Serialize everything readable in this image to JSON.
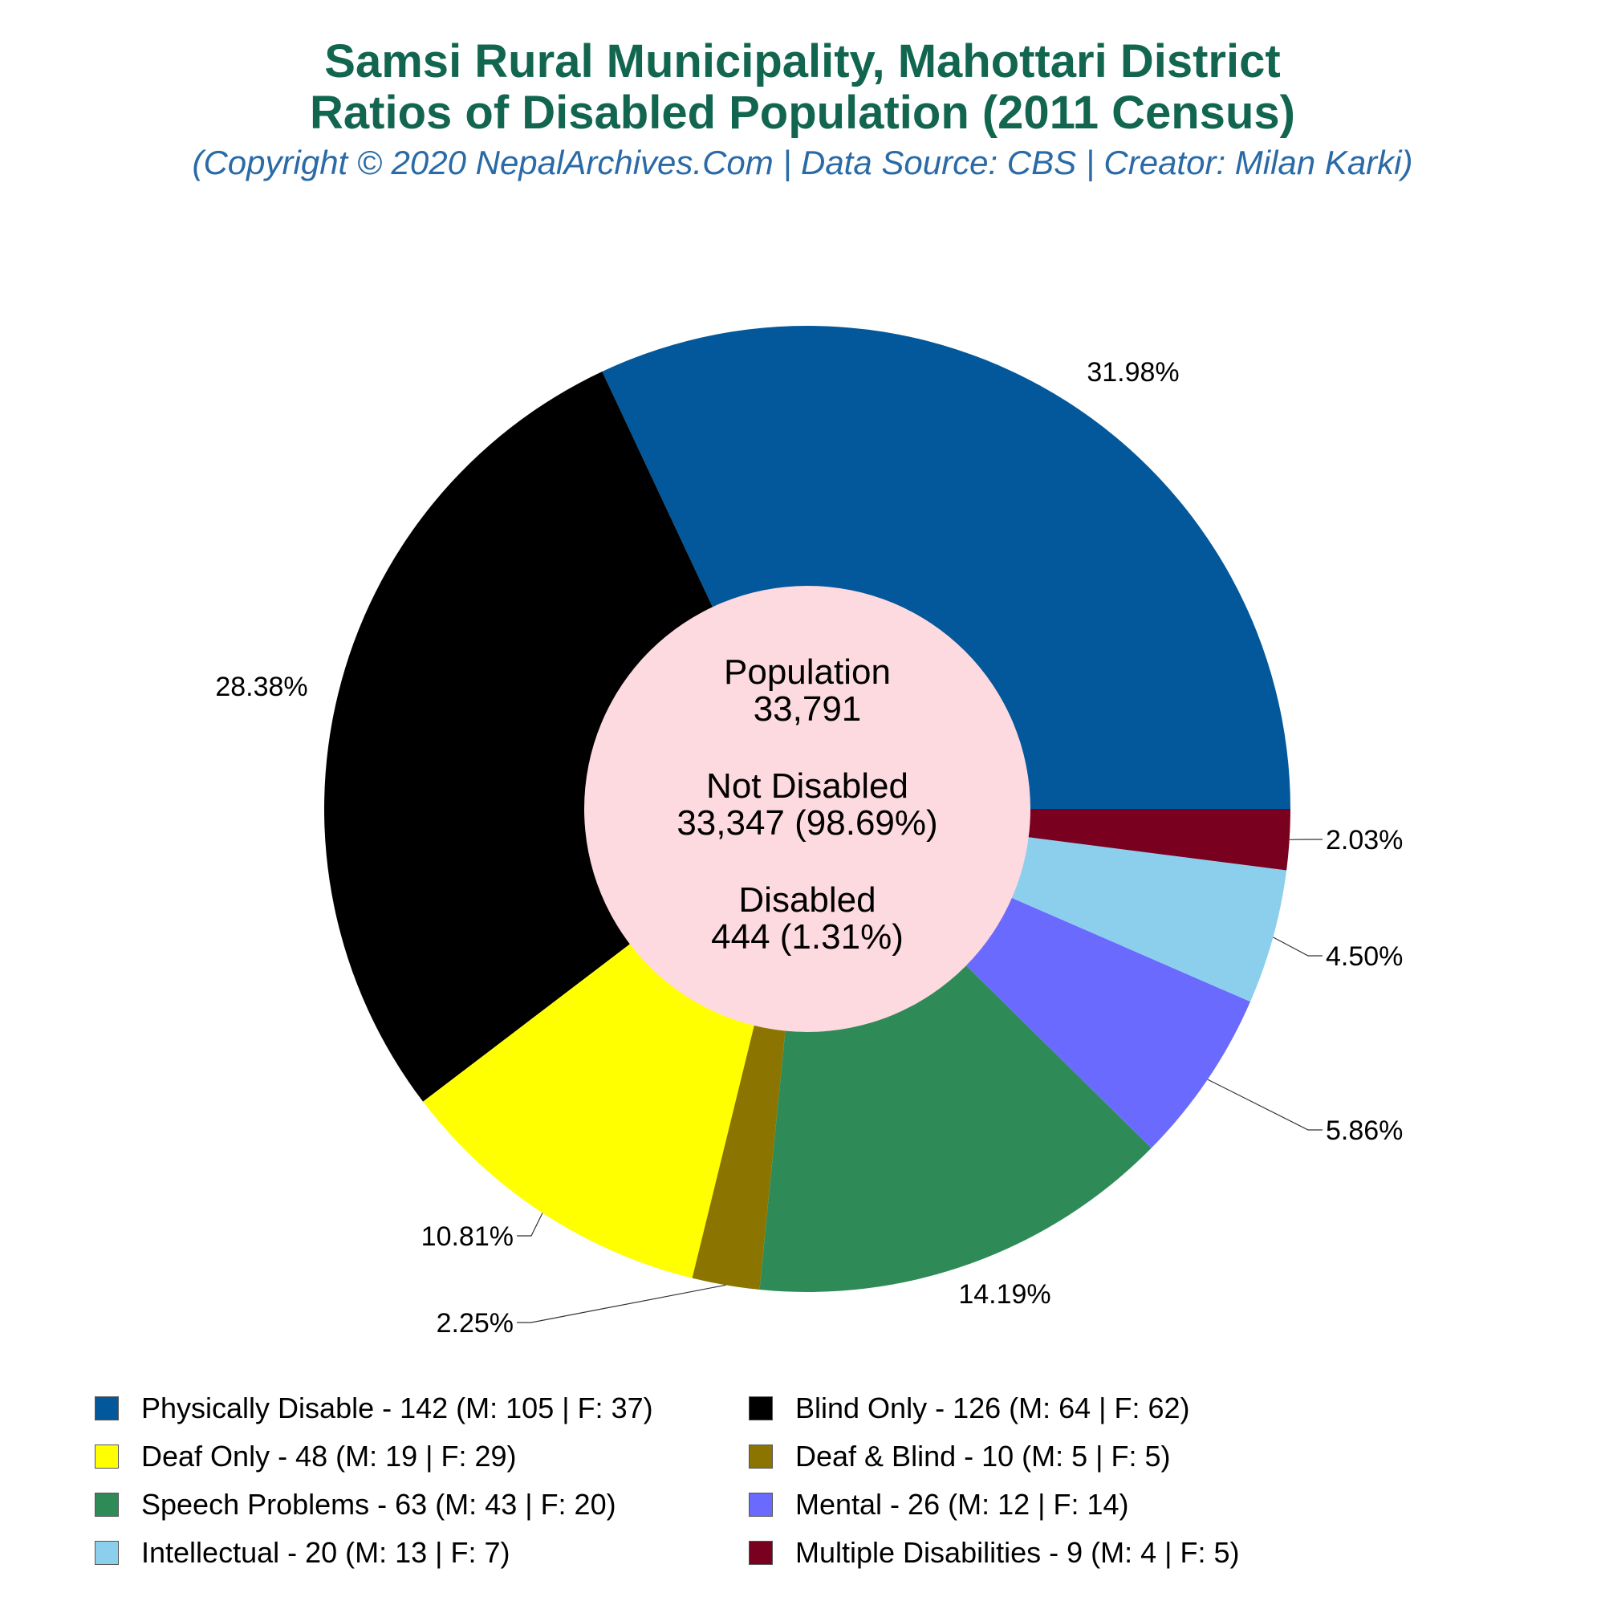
{
  "title_line1": "Samsi Rural Municipality, Mahottari District",
  "title_line2": "Ratios of Disabled Population (2011 Census)",
  "subtitle": "(Copyright © 2020 NepalArchives.Com | Data Source: CBS | Creator: Milan Karki)",
  "center": {
    "population_label": "Population",
    "population_value": "33,791",
    "not_disabled_label": "Not Disabled",
    "not_disabled_value": "33,347 (98.69%)",
    "disabled_label": "Disabled",
    "disabled_value": "444 (1.31%)"
  },
  "chart_data": {
    "type": "pie",
    "style": "donut",
    "start_angle_deg": 0,
    "direction": "counterclockwise",
    "slices": [
      {
        "name": "Physically Disable",
        "value": 142,
        "male": 105,
        "female": 37,
        "percent_label": "31.98%",
        "color": "#02589b",
        "legend": "Physically Disable - 142 (M: 105 | F: 37)"
      },
      {
        "name": "Blind Only",
        "value": 126,
        "male": 64,
        "female": 62,
        "percent_label": "28.38%",
        "color": "#000000",
        "legend": "Blind Only - 126 (M: 64 | F: 62)"
      },
      {
        "name": "Deaf Only",
        "value": 48,
        "male": 19,
        "female": 29,
        "percent_label": "10.81%",
        "color": "#ffff00",
        "legend": "Deaf Only - 48 (M: 19 | F: 29)"
      },
      {
        "name": "Deaf & Blind",
        "value": 10,
        "male": 5,
        "female": 5,
        "percent_label": "2.25%",
        "color": "#8b7500",
        "legend": "Deaf & Blind - 10 (M: 5 | F: 5)"
      },
      {
        "name": "Speech Problems",
        "value": 63,
        "male": 43,
        "female": 20,
        "percent_label": "14.19%",
        "color": "#2e8b57",
        "legend": "Speech Problems - 63 (M: 43 | F: 20)"
      },
      {
        "name": "Mental",
        "value": 26,
        "male": 12,
        "female": 14,
        "percent_label": "5.86%",
        "color": "#6a6afe",
        "legend": "Mental - 26 (M: 12 | F: 14)"
      },
      {
        "name": "Intellectual",
        "value": 20,
        "male": 13,
        "female": 7,
        "percent_label": "4.50%",
        "color": "#8ccfec",
        "legend": "Intellectual - 20 (M: 13 | F: 7)"
      },
      {
        "name": "Multiple Disabilities",
        "value": 9,
        "male": 4,
        "female": 5,
        "percent_label": "2.03%",
        "color": "#7a0020",
        "legend": "Multiple Disabilities - 9 (M: 4 | F: 5)"
      }
    ],
    "center_color": "#fdd9e0",
    "legend_placement": "bottom"
  }
}
